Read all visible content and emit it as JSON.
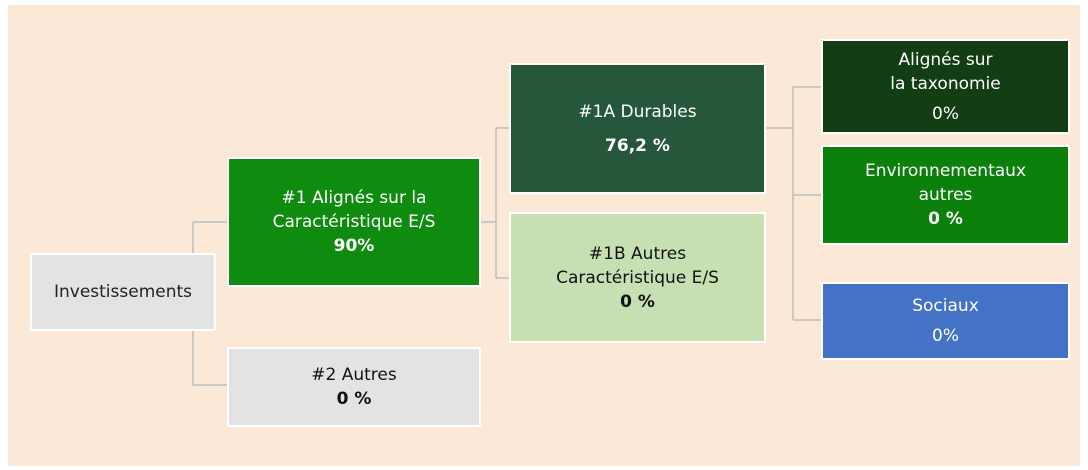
{
  "nodes": [
    {
      "lines": [
        "Investissements"
      ]
    },
    {
      "lines": [
        "#1 Alignés sur la",
        "Caractéristique E/S"
      ],
      "value": "90%"
    },
    {
      "lines": [
        "#2 Autres"
      ],
      "value": "0 %"
    },
    {
      "lines": [
        "#1A Durables"
      ],
      "value": "76,2 %"
    },
    {
      "lines": [
        "#1B Autres",
        "Caractéristique E/S"
      ],
      "value": "0 %"
    },
    {
      "lines": [
        "Alignés sur",
        "la taxonomie"
      ],
      "value": "0%"
    },
    {
      "lines": [
        "Environnementaux",
        "autres"
      ],
      "value": "0 %"
    },
    {
      "lines": [
        "Sociaux"
      ],
      "value": "0%"
    }
  ]
}
